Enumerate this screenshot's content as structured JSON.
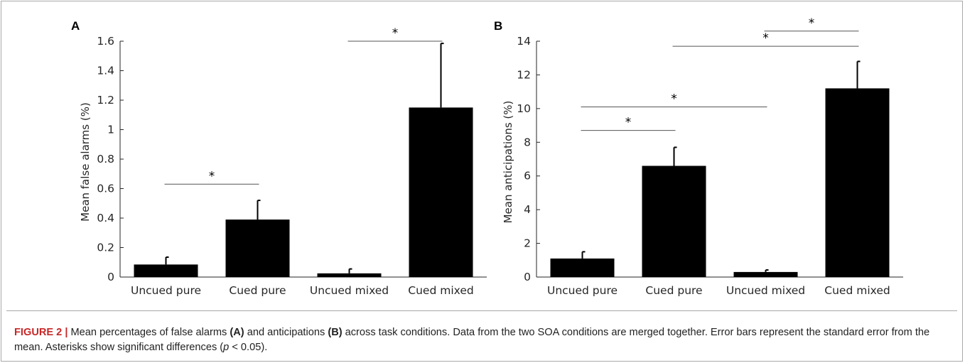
{
  "figure": {
    "caption_label": "FIGURE 2 |",
    "caption_parts": [
      {
        "t": "text",
        "v": " Mean percentages of false alarms "
      },
      {
        "t": "bold",
        "v": "(A)"
      },
      {
        "t": "text",
        "v": " and anticipations "
      },
      {
        "t": "bold",
        "v": "(B)"
      },
      {
        "t": "text",
        "v": " across task conditions. Data from the two SOA conditions are merged together. Error bars represent the standard error from the mean. Asterisks show significant differences ("
      },
      {
        "t": "italic",
        "v": "p"
      },
      {
        "t": "text",
        "v": " < 0.05)."
      }
    ]
  },
  "chart_data": [
    {
      "panel": "A",
      "type": "bar",
      "categories": [
        "Uncued pure",
        "Cued pure",
        "Uncued mixed",
        "Cued mixed"
      ],
      "values": [
        0.085,
        0.39,
        0.025,
        1.15
      ],
      "errors": [
        0.05,
        0.13,
        0.03,
        0.435
      ],
      "ylabel": "Mean false alarms (%)",
      "ylim": [
        0,
        1.6
      ],
      "yticks": [
        0,
        0.2,
        0.4,
        0.6,
        0.8,
        1,
        1.2,
        1.4,
        1.6
      ],
      "ytick_labels": [
        "0",
        "0.2",
        "0.4",
        "0.6",
        "0.8",
        "1",
        "1.2",
        "1.4",
        "1.6"
      ],
      "bar_color": "#000000",
      "grid": false,
      "significance": [
        {
          "from": 0,
          "to": 1,
          "y": 0.63,
          "label": "*"
        },
        {
          "from": 2,
          "to": 3,
          "y": 1.6,
          "label": "*"
        }
      ]
    },
    {
      "panel": "B",
      "type": "bar",
      "categories": [
        "Uncued pure",
        "Cued pure",
        "Uncued mixed",
        "Cued mixed"
      ],
      "values": [
        1.1,
        6.6,
        0.3,
        11.2
      ],
      "errors": [
        0.4,
        1.1,
        0.12,
        1.6
      ],
      "ylabel": "Mean anticipations (%)",
      "ylim": [
        0,
        14
      ],
      "yticks": [
        0,
        2,
        4,
        6,
        8,
        10,
        12,
        14
      ],
      "ytick_labels": [
        "0",
        "2",
        "4",
        "6",
        "8",
        "10",
        "12",
        "14"
      ],
      "bar_color": "#000000",
      "grid": false,
      "significance": [
        {
          "from": 0,
          "to": 1,
          "y": 8.7,
          "label": "*"
        },
        {
          "from": 0,
          "to": 2,
          "y": 10.1,
          "label": "*"
        },
        {
          "from": 1,
          "to": 3,
          "y": 13.7,
          "label": "*"
        },
        {
          "from": 2,
          "to": 3,
          "y": 14.6,
          "label": "*"
        }
      ]
    }
  ]
}
